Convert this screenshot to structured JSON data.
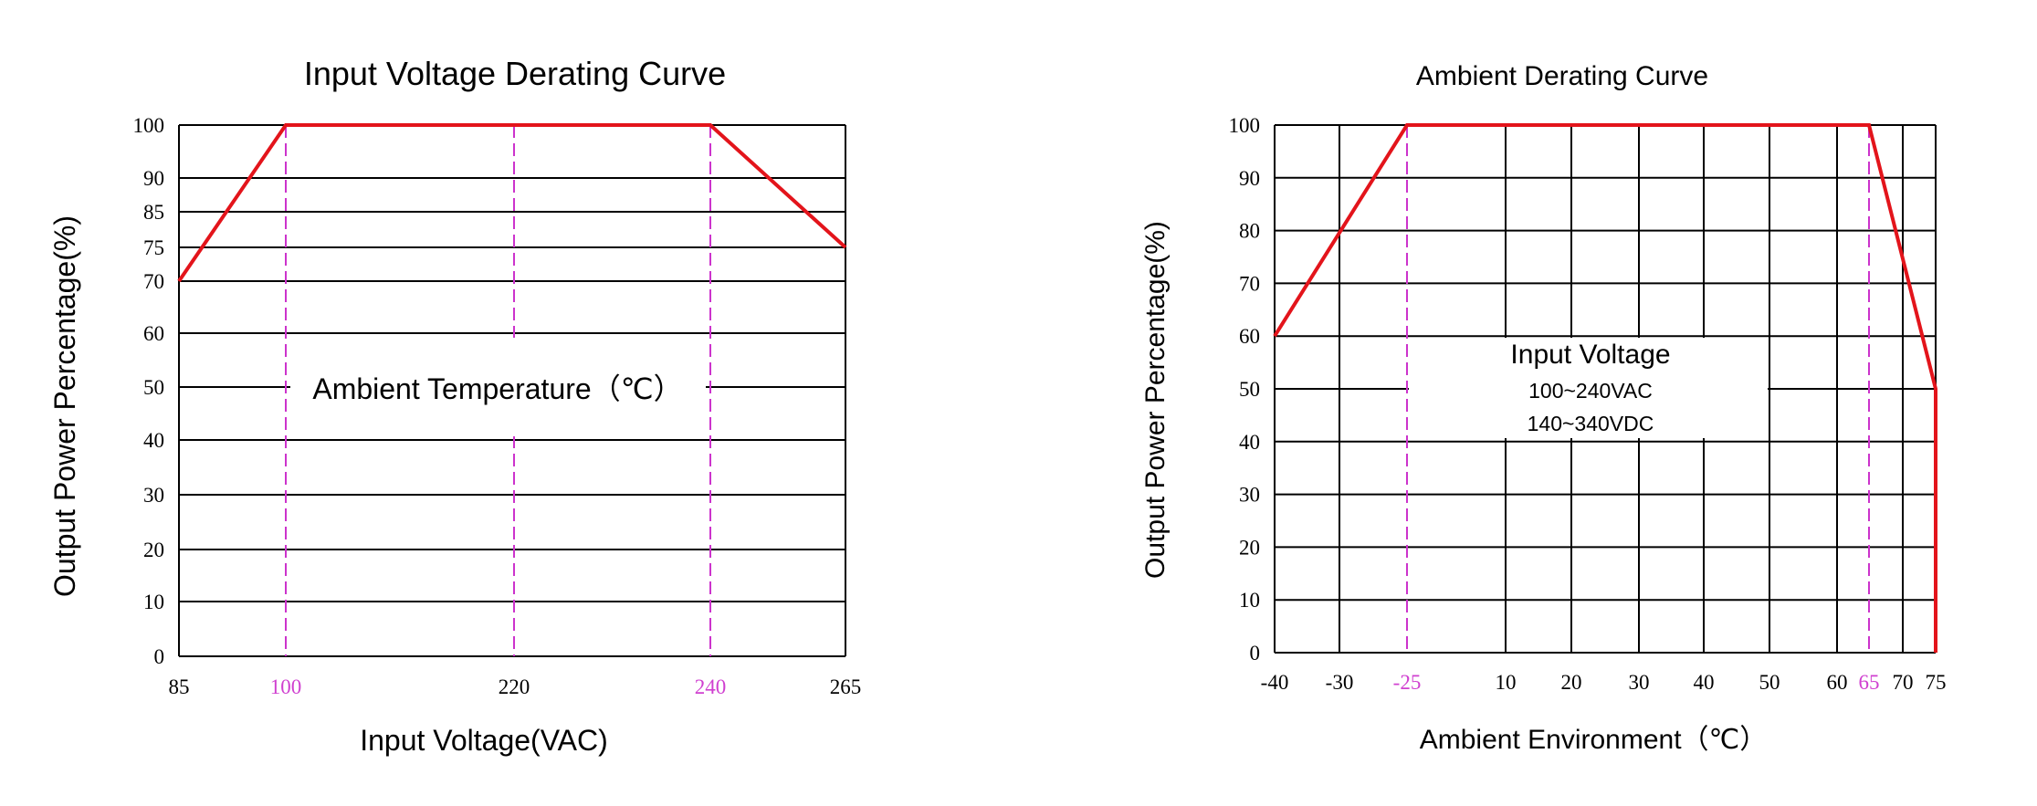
{
  "chart_data": [
    {
      "type": "line",
      "title": "Input Voltage Derating Curve",
      "xlabel": "Input Voltage(VAC)",
      "ylabel": "Output Power Percentage(%)",
      "annotation": [
        "Ambient Temperature（℃）"
      ],
      "x_ticks": [
        "85",
        "100",
        "220",
        "240",
        "265"
      ],
      "x_tick_values": [
        85,
        100,
        220,
        240,
        265
      ],
      "highlighted_x_ticks": [
        100,
        240
      ],
      "y_ticks": [
        "0",
        "10",
        "20",
        "30",
        "40",
        "50",
        "60",
        "70",
        "75",
        "85",
        "90",
        "100"
      ],
      "y_tick_values": [
        0,
        10,
        20,
        30,
        40,
        50,
        60,
        70,
        75,
        85,
        90,
        100
      ],
      "dashed_reference_x": [
        100,
        220,
        240
      ],
      "xlim": [
        85,
        265
      ],
      "ylim": [
        0,
        100
      ],
      "grid": "horizontal",
      "series": [
        {
          "x": [
            85,
            100,
            240,
            265
          ],
          "y": [
            70,
            100,
            100,
            75
          ]
        }
      ]
    },
    {
      "type": "line",
      "title": "Ambient Derating Curve",
      "xlabel": "Ambient Environment（℃）",
      "ylabel": "Output Power Percentage(%)",
      "annotation": [
        "Input Voltage",
        "100~240VAC",
        "140~340VDC"
      ],
      "x_ticks": [
        "-40",
        "-30",
        "-25",
        "10",
        "20",
        "30",
        "40",
        "50",
        "60",
        "65",
        "70",
        "75"
      ],
      "x_tick_values": [
        -40,
        -30,
        -25,
        10,
        20,
        30,
        40,
        50,
        60,
        65,
        70,
        75
      ],
      "highlighted_x_ticks": [
        -25,
        65
      ],
      "y_ticks": [
        "0",
        "10",
        "20",
        "30",
        "40",
        "50",
        "60",
        "70",
        "80",
        "90",
        "100"
      ],
      "y_tick_values": [
        0,
        10,
        20,
        30,
        40,
        50,
        60,
        70,
        80,
        90,
        100
      ],
      "dashed_reference_x": [
        -25,
        65
      ],
      "xlim": [
        -40,
        75
      ],
      "ylim": [
        0,
        100
      ],
      "grid": "both",
      "series": [
        {
          "x": [
            -40,
            -25,
            65,
            75,
            75
          ],
          "y": [
            60,
            100,
            100,
            50,
            0
          ]
        }
      ]
    }
  ],
  "colors": {
    "curve": "#e3141b",
    "reference": "#cc33cc",
    "grid": "#000000",
    "highlight_tick": "#d040d0"
  }
}
